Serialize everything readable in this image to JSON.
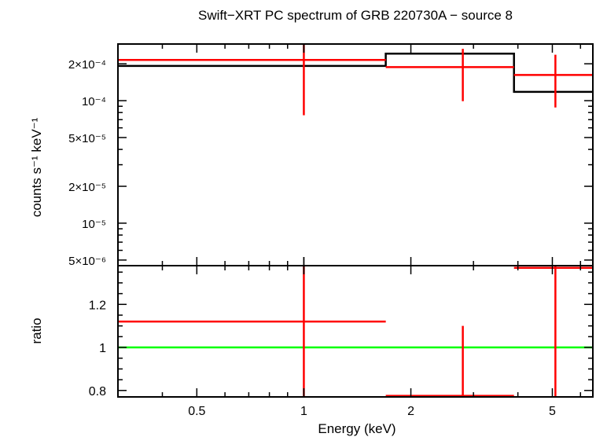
{
  "chart_data": [
    {
      "type": "line",
      "panel": "spectrum",
      "title": "Swift−XRT PC spectrum of GRB 220730A − source 8",
      "xlabel": "",
      "ylabel": "counts s⁻¹ keV⁻¹",
      "x_scale": "log",
      "y_scale": "log",
      "xlim": [
        0.3,
        6.5
      ],
      "ylim": [
        4.5e-06,
        0.00029
      ],
      "y_ticks": [
        {
          "value": 0.0002,
          "label": "2×10⁻⁴"
        },
        {
          "value": 0.0001,
          "label": "10⁻⁴"
        },
        {
          "value": 5e-05,
          "label": "5×10⁻⁵"
        },
        {
          "value": 2e-05,
          "label": "2×10⁻⁵"
        },
        {
          "value": 1e-05,
          "label": "10⁻⁵"
        },
        {
          "value": 5e-06,
          "label": "5×10⁻⁶"
        }
      ],
      "data_points": [
        {
          "x_lo": 0.3,
          "x_hi": 1.7,
          "x": 1.0,
          "y": 0.000215,
          "y_lo": 7.6e-05,
          "y_hi": 0.00029
        },
        {
          "x_lo": 1.7,
          "x_hi": 3.9,
          "x": 2.8,
          "y": 0.000188,
          "y_lo": 9.9e-05,
          "y_hi": 0.000265
        },
        {
          "x_lo": 3.9,
          "x_hi": 6.5,
          "x": 5.1,
          "y": 0.000162,
          "y_lo": 8.8e-05,
          "y_hi": 0.000237
        }
      ],
      "model_steps": [
        {
          "x_lo": 0.3,
          "x_hi": 1.7,
          "y": 0.000192
        },
        {
          "x_lo": 1.7,
          "x_hi": 3.9,
          "y": 0.000242
        },
        {
          "x_lo": 3.9,
          "x_hi": 6.5,
          "y": 0.000118
        }
      ],
      "colors": {
        "data": "#ff0000",
        "model": "#000000"
      }
    },
    {
      "type": "line",
      "panel": "ratio",
      "xlabel": "Energy (keV)",
      "ylabel": "ratio",
      "x_scale": "log",
      "y_scale": "linear",
      "xlim": [
        0.3,
        6.5
      ],
      "ylim": [
        0.77,
        1.38
      ],
      "x_ticks": [
        {
          "value": 0.5,
          "label": "0.5"
        },
        {
          "value": 1,
          "label": "1"
        },
        {
          "value": 2,
          "label": "2"
        },
        {
          "value": 5,
          "label": "5"
        }
      ],
      "y_ticks": [
        {
          "value": 0.8,
          "label": "0.8"
        },
        {
          "value": 1,
          "label": "1"
        },
        {
          "value": 1.2,
          "label": "1.2"
        }
      ],
      "data_points": [
        {
          "x_lo": 0.3,
          "x_hi": 1.7,
          "x": 1.0,
          "y": 1.12,
          "y_lo": 0.77,
          "y_hi": 1.38
        },
        {
          "x_lo": 1.7,
          "x_hi": 3.9,
          "x": 2.8,
          "y": 0.775,
          "y_lo": 0.77,
          "y_hi": 1.1
        },
        {
          "x_lo": 3.9,
          "x_hi": 6.5,
          "x": 5.1,
          "y": 1.37,
          "y_lo": 0.77,
          "y_hi": 1.38
        }
      ],
      "reference_line": 1,
      "colors": {
        "data": "#ff0000",
        "reference": "#00ff00"
      }
    }
  ]
}
